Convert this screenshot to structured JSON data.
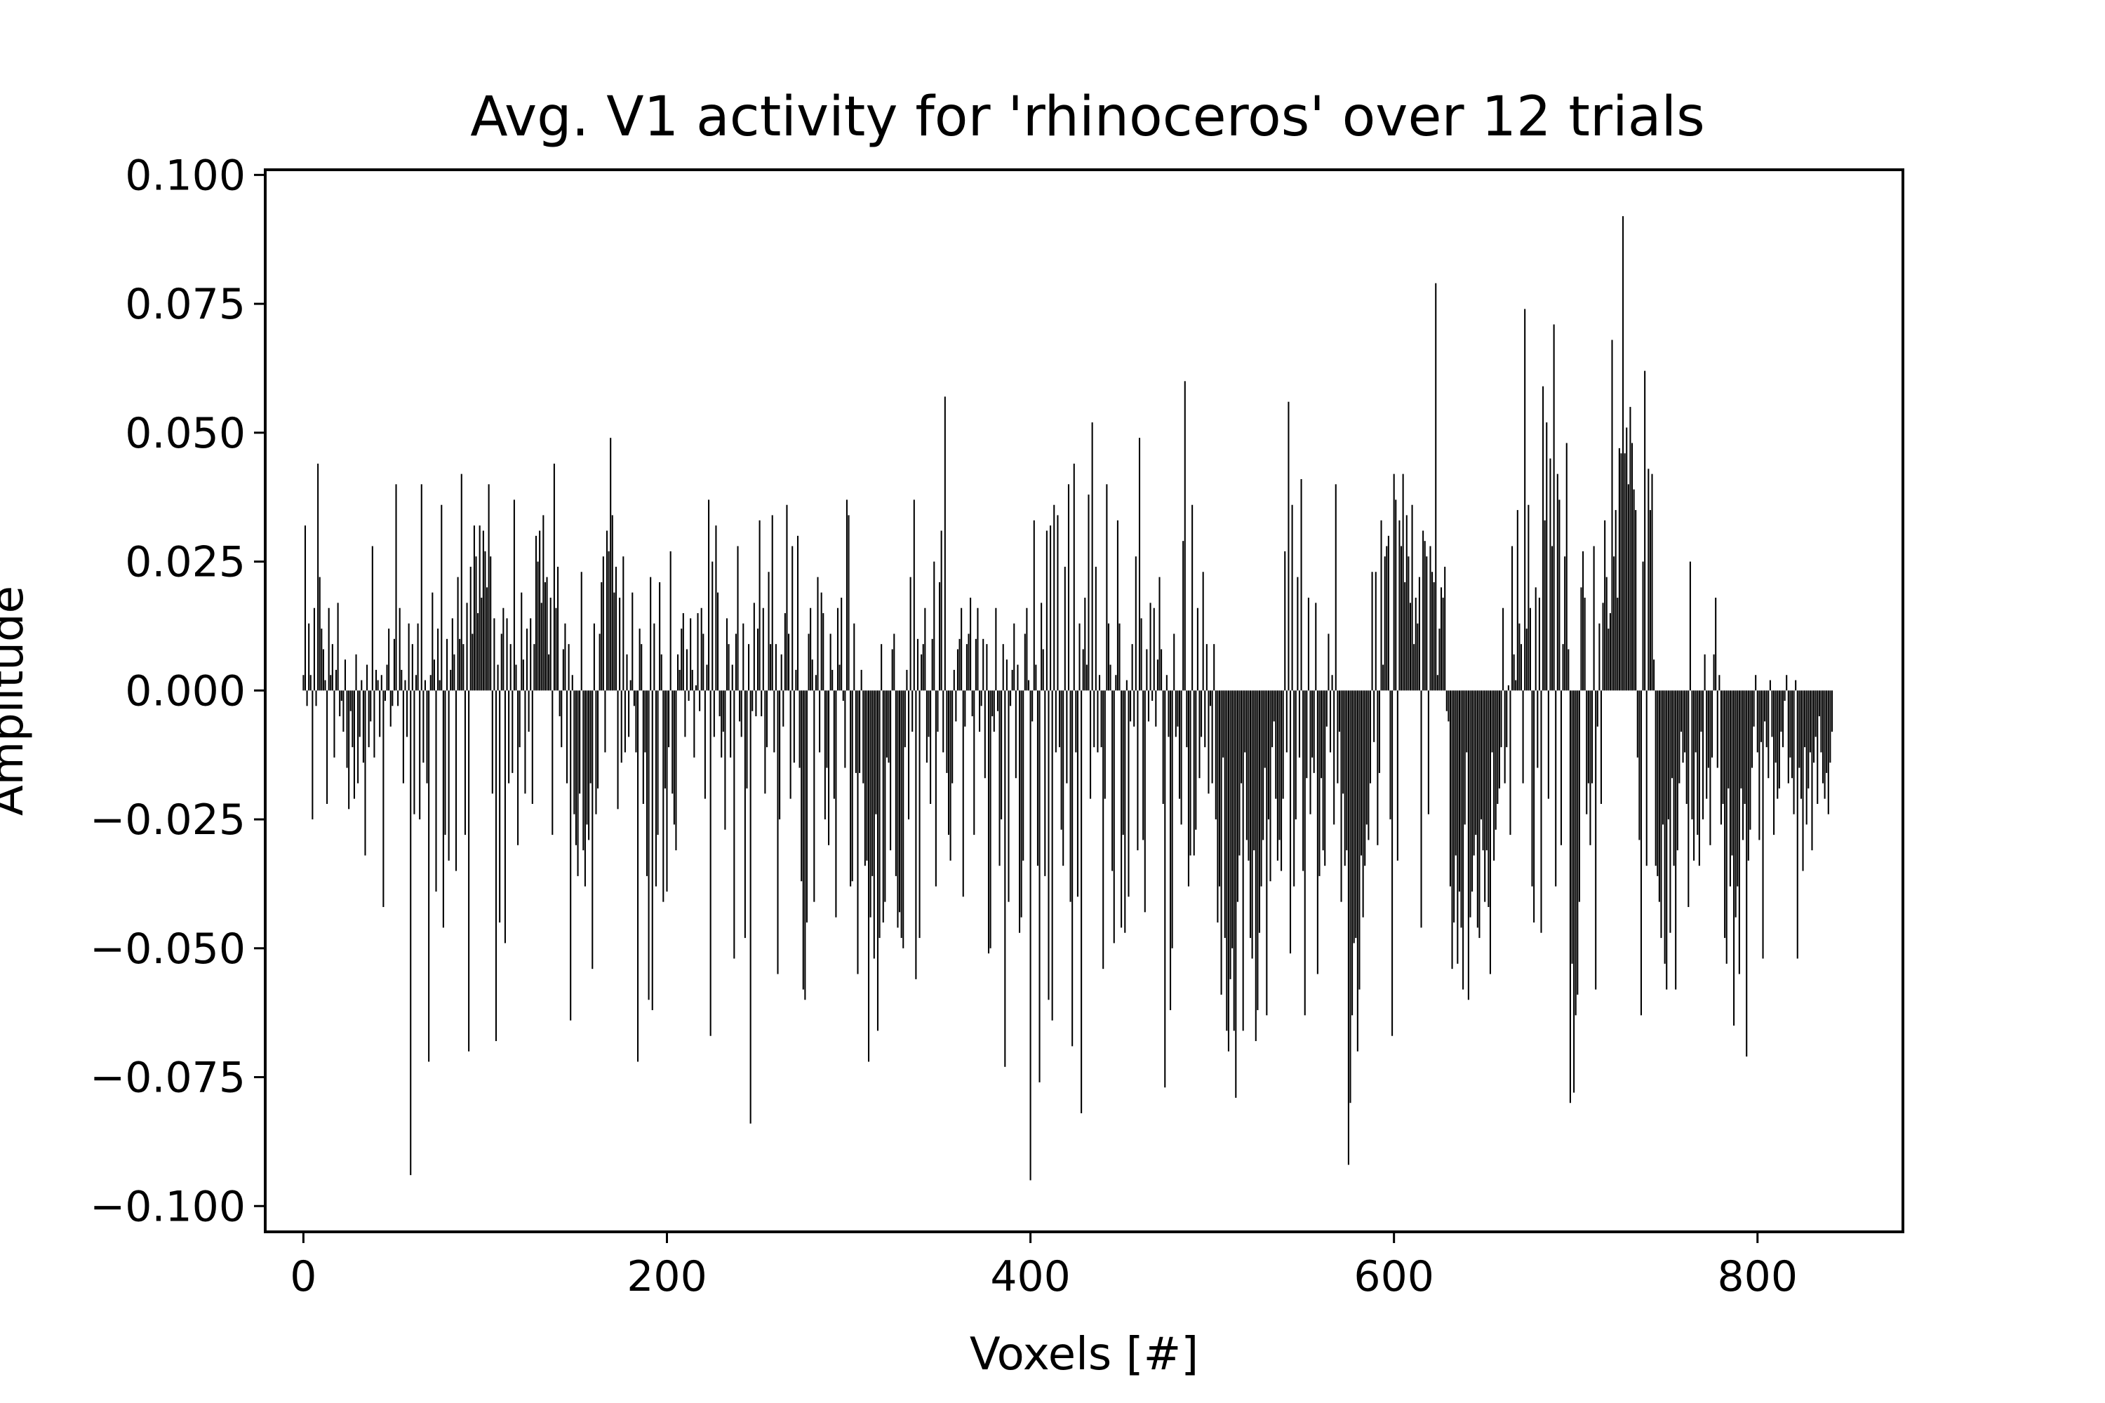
{
  "chart_data": {
    "type": "bar",
    "title": "Avg. V1 activity for 'rhinoceros' over 12 trials",
    "xlabel": "Voxels [#]",
    "ylabel": "Amplitude",
    "xlim": [
      -21,
      880
    ],
    "ylim": [
      -0.105,
      0.101
    ],
    "xticks": [
      0,
      200,
      400,
      600,
      800
    ],
    "xtick_labels": [
      "0",
      "200",
      "400",
      "600",
      "800"
    ],
    "yticks": [
      0.1,
      0.075,
      0.05,
      0.025,
      0.0,
      -0.025,
      -0.05,
      -0.075,
      -0.1
    ],
    "ytick_labels": [
      "0.100",
      "0.075",
      "0.050",
      "0.025",
      "0.000",
      "−0.025",
      "−0.050",
      "−0.075",
      "−0.100"
    ],
    "grid": false,
    "legend": "none",
    "n_voxels": 838,
    "x_start": 0,
    "bar_color": "#000000",
    "series": [
      {
        "values": [
          0.003,
          0.032,
          -0.003,
          0.013,
          0.003,
          -0.025,
          0.016,
          -0.003,
          0.044,
          0.022,
          0.012,
          0.008,
          0.002,
          -0.022,
          0.016,
          0.003,
          0.009,
          -0.013,
          0.004,
          0.017,
          -0.005,
          -0.002,
          -0.008,
          0.006,
          -0.015,
          -0.023,
          -0.004,
          -0.011,
          -0.021,
          0.007,
          -0.018,
          -0.009,
          0.002,
          -0.014,
          -0.032,
          0.005,
          -0.011,
          -0.006,
          0.028,
          -0.013,
          0.004,
          0.002,
          -0.009,
          0.003,
          -0.042,
          -0.002,
          0.005,
          0.012,
          -0.007,
          -0.003,
          0.01,
          0.04,
          -0.003,
          0.016,
          0.004,
          -0.018,
          0.002,
          -0.009,
          0.013,
          -0.094,
          0.009,
          -0.024,
          0.003,
          0.013,
          -0.025,
          0.04,
          -0.014,
          0.002,
          -0.018,
          -0.072,
          0.003,
          0.019,
          0.006,
          -0.039,
          0.012,
          0.002,
          0.036,
          -0.046,
          -0.028,
          0.01,
          -0.033,
          0.004,
          0.014,
          0.007,
          -0.035,
          0.022,
          0.01,
          0.042,
          0.009,
          -0.028,
          0.017,
          -0.07,
          0.024,
          0.011,
          0.032,
          0.026,
          0.015,
          0.032,
          0.018,
          0.031,
          0.027,
          0.02,
          0.04,
          0.026,
          -0.02,
          0.014,
          -0.068,
          0.005,
          -0.045,
          0.011,
          0.016,
          -0.049,
          0.014,
          -0.018,
          0.009,
          -0.016,
          0.037,
          0.005,
          -0.03,
          -0.011,
          0.019,
          0.006,
          -0.02,
          0.012,
          -0.008,
          0.014,
          -0.022,
          0.009,
          0.03,
          0.025,
          0.031,
          0.017,
          0.034,
          0.021,
          0.022,
          0.007,
          0.018,
          -0.028,
          0.044,
          0.016,
          0.024,
          -0.005,
          -0.011,
          0.008,
          0.013,
          -0.018,
          0.009,
          -0.064,
          0.003,
          -0.024,
          -0.03,
          -0.036,
          -0.02,
          0.023,
          -0.031,
          -0.038,
          -0.026,
          -0.029,
          -0.018,
          -0.054,
          0.013,
          -0.024,
          -0.019,
          0.011,
          0.021,
          0.026,
          -0.012,
          0.031,
          0.027,
          0.049,
          0.034,
          0.019,
          0.024,
          -0.023,
          0.018,
          -0.014,
          0.026,
          -0.012,
          0.007,
          -0.009,
          0.002,
          0.019,
          -0.003,
          -0.012,
          -0.072,
          0.012,
          0.009,
          -0.022,
          -0.012,
          -0.036,
          -0.06,
          0.022,
          -0.062,
          0.013,
          -0.038,
          -0.028,
          0.021,
          0.007,
          -0.041,
          -0.019,
          -0.039,
          -0.011,
          0.027,
          -0.02,
          -0.026,
          -0.031,
          0.007,
          0.004,
          0.012,
          0.015,
          -0.009,
          0.008,
          -0.002,
          0.014,
          0.004,
          -0.013,
          0.001,
          0.015,
          -0.004,
          0.016,
          0.011,
          -0.021,
          0.005,
          0.037,
          -0.067,
          0.025,
          -0.009,
          0.032,
          0.019,
          -0.005,
          -0.013,
          -0.008,
          -0.027,
          0.014,
          0.009,
          -0.013,
          0.005,
          -0.052,
          0.011,
          0.028,
          -0.006,
          -0.009,
          0.013,
          -0.048,
          -0.019,
          0.009,
          -0.084,
          -0.004,
          0.017,
          -0.005,
          0.012,
          0.033,
          -0.005,
          0.016,
          -0.02,
          -0.011,
          0.023,
          0.009,
          0.034,
          -0.012,
          0.009,
          -0.055,
          -0.025,
          0.007,
          -0.007,
          0.015,
          0.036,
          0.011,
          -0.021,
          0.028,
          -0.014,
          0.004,
          0.03,
          -0.015,
          -0.037,
          -0.058,
          -0.06,
          -0.045,
          0.011,
          0.016,
          0.006,
          -0.041,
          0.003,
          0.022,
          -0.012,
          0.019,
          0.015,
          -0.025,
          -0.015,
          -0.03,
          0.011,
          0.004,
          -0.021,
          -0.044,
          0.016,
          0.005,
          0.018,
          -0.002,
          -0.015,
          0.037,
          0.034,
          -0.038,
          -0.037,
          0.013,
          -0.016,
          -0.055,
          -0.016,
          0.004,
          -0.018,
          -0.034,
          -0.033,
          -0.072,
          -0.044,
          -0.036,
          -0.052,
          -0.024,
          -0.066,
          -0.048,
          0.009,
          -0.045,
          -0.041,
          -0.013,
          -0.014,
          -0.031,
          0.008,
          0.011,
          -0.036,
          -0.046,
          -0.043,
          -0.048,
          -0.05,
          -0.011,
          0.004,
          -0.025,
          0.022,
          -0.008,
          0.037,
          -0.056,
          0.01,
          -0.048,
          0.007,
          0.009,
          0.016,
          -0.014,
          -0.009,
          -0.022,
          0.01,
          0.025,
          -0.038,
          -0.008,
          0.021,
          0.031,
          -0.012,
          0.057,
          -0.016,
          -0.028,
          -0.033,
          -0.018,
          0.004,
          -0.006,
          0.008,
          0.01,
          0.016,
          -0.04,
          -0.007,
          0.009,
          0.011,
          0.018,
          -0.005,
          -0.028,
          0.01,
          0.016,
          -0.008,
          -0.003,
          0.01,
          -0.017,
          0.009,
          -0.051,
          -0.05,
          -0.005,
          -0.008,
          0.016,
          -0.004,
          -0.034,
          -0.025,
          0.009,
          -0.073,
          0.006,
          -0.041,
          -0.003,
          0.004,
          0.013,
          -0.017,
          0.005,
          -0.047,
          -0.044,
          -0.033,
          0.011,
          0.016,
          0.002,
          -0.095,
          -0.006,
          0.033,
          0.005,
          -0.034,
          -0.076,
          0.017,
          0.008,
          -0.036,
          0.031,
          -0.06,
          0.032,
          -0.064,
          0.036,
          -0.012,
          0.034,
          -0.011,
          -0.027,
          -0.034,
          0.024,
          -0.018,
          0.04,
          -0.041,
          -0.069,
          0.044,
          -0.012,
          -0.04,
          0.013,
          -0.082,
          0.008,
          0.018,
          0.005,
          0.038,
          -0.021,
          0.052,
          -0.011,
          0.024,
          -0.012,
          0.003,
          -0.011,
          -0.054,
          -0.021,
          0.04,
          0.013,
          0.005,
          -0.035,
          -0.049,
          0.003,
          0.033,
          0.013,
          -0.046,
          -0.028,
          -0.047,
          0.002,
          -0.04,
          -0.006,
          0.009,
          -0.007,
          0.026,
          -0.031,
          0.049,
          0.014,
          -0.029,
          -0.043,
          0.008,
          -0.006,
          0.017,
          -0.002,
          0.016,
          -0.007,
          0.006,
          0.022,
          0.008,
          -0.022,
          -0.077,
          0.003,
          -0.009,
          -0.062,
          -0.05,
          0.011,
          -0.009,
          -0.007,
          -0.021,
          -0.026,
          0.029,
          0.06,
          -0.011,
          -0.038,
          -0.032,
          0.036,
          -0.032,
          -0.027,
          0.016,
          -0.017,
          -0.009,
          0.023,
          -0.011,
          0.009,
          -0.02,
          -0.003,
          -0.018,
          0.009,
          -0.025,
          -0.045,
          -0.038,
          -0.059,
          -0.013,
          -0.048,
          -0.066,
          -0.07,
          -0.056,
          -0.05,
          -0.066,
          -0.079,
          -0.041,
          -0.032,
          -0.018,
          -0.066,
          -0.012,
          -0.029,
          -0.033,
          -0.048,
          -0.052,
          -0.031,
          -0.068,
          -0.062,
          -0.047,
          -0.038,
          -0.029,
          -0.015,
          -0.063,
          -0.025,
          -0.037,
          -0.011,
          -0.006,
          -0.021,
          -0.033,
          -0.029,
          -0.035,
          -0.021,
          0.027,
          -0.012,
          0.056,
          -0.051,
          0.036,
          -0.038,
          -0.025,
          0.022,
          -0.013,
          0.041,
          -0.035,
          -0.063,
          -0.017,
          0.018,
          -0.024,
          -0.013,
          -0.016,
          0.017,
          -0.055,
          -0.036,
          -0.017,
          -0.031,
          -0.034,
          -0.007,
          0.011,
          -0.012,
          0.003,
          -0.026,
          0.04,
          -0.018,
          -0.008,
          -0.041,
          -0.02,
          -0.034,
          -0.031,
          -0.092,
          -0.08,
          -0.063,
          -0.049,
          -0.048,
          -0.07,
          -0.058,
          -0.032,
          -0.044,
          -0.034,
          -0.026,
          -0.029,
          -0.018,
          0.023,
          -0.01,
          0.023,
          -0.03,
          -0.016,
          0.033,
          0.005,
          0.026,
          0.028,
          0.03,
          -0.025,
          -0.067,
          0.042,
          0.037,
          -0.033,
          0.033,
          0.028,
          0.042,
          0.021,
          0.034,
          0.026,
          0.017,
          0.036,
          0.009,
          0.018,
          0.013,
          0.022,
          -0.046,
          0.031,
          0.029,
          0.026,
          -0.024,
          0.028,
          0.023,
          0.021,
          0.079,
          0.003,
          0.012,
          0.02,
          0.018,
          0.024,
          -0.004,
          -0.006,
          -0.038,
          -0.054,
          -0.045,
          -0.032,
          -0.053,
          -0.039,
          -0.046,
          -0.058,
          -0.026,
          -0.012,
          -0.06,
          -0.044,
          -0.039,
          -0.032,
          -0.028,
          -0.046,
          -0.048,
          -0.025,
          -0.031,
          -0.041,
          -0.031,
          -0.042,
          -0.055,
          -0.012,
          -0.033,
          -0.027,
          -0.022,
          -0.019,
          -0.011,
          0.016,
          -0.018,
          -0.011,
          0.001,
          -0.028,
          0.028,
          0.007,
          0.002,
          0.035,
          0.013,
          0.009,
          -0.018,
          0.074,
          0.012,
          0.036,
          0.016,
          -0.038,
          -0.045,
          0.02,
          -0.015,
          0.018,
          -0.047,
          0.059,
          0.033,
          0.052,
          -0.021,
          0.045,
          0.028,
          0.071,
          -0.038,
          0.042,
          0.037,
          -0.03,
          0.009,
          0.026,
          0.048,
          0.008,
          -0.08,
          -0.053,
          -0.078,
          -0.063,
          -0.059,
          -0.041,
          0.02,
          0.027,
          0.018,
          -0.024,
          -0.018,
          -0.03,
          -0.018,
          0.028,
          -0.058,
          -0.007,
          0.013,
          -0.022,
          0.017,
          0.033,
          0.022,
          0.012,
          0.015,
          0.068,
          0.026,
          0.035,
          0.018,
          0.047,
          0.046,
          0.092,
          0.046,
          0.051,
          0.04,
          0.055,
          0.048,
          0.039,
          0.035,
          -0.013,
          -0.029,
          -0.063,
          0.025,
          0.062,
          -0.034,
          0.043,
          0.035,
          0.042,
          0.006,
          -0.034,
          -0.036,
          -0.041,
          -0.048,
          -0.026,
          -0.053,
          -0.058,
          -0.025,
          -0.047,
          -0.017,
          -0.034,
          -0.058,
          -0.031,
          -0.018,
          -0.008,
          -0.014,
          -0.012,
          -0.022,
          -0.042,
          0.025,
          -0.025,
          -0.033,
          -0.012,
          -0.028,
          -0.034,
          -0.008,
          -0.025,
          0.007,
          -0.021,
          -0.015,
          -0.03,
          -0.013,
          0.007,
          0.018,
          -0.015,
          0.003,
          -0.026,
          -0.022,
          -0.048,
          -0.053,
          -0.019,
          -0.038,
          -0.032,
          -0.065,
          -0.044,
          -0.038,
          -0.055,
          -0.019,
          -0.029,
          -0.022,
          -0.071,
          -0.033,
          -0.027,
          -0.015,
          -0.007,
          0.003,
          -0.012,
          -0.029,
          -0.01,
          -0.052,
          -0.006,
          -0.011,
          -0.017,
          0.002,
          -0.009,
          -0.028,
          -0.014,
          -0.021,
          -0.019,
          -0.008,
          -0.011,
          -0.002,
          0.003,
          -0.018,
          -0.013,
          -0.017,
          -0.024,
          0.002,
          -0.052,
          -0.015,
          -0.021,
          -0.035,
          -0.011,
          -0.026,
          -0.019,
          -0.012,
          -0.031,
          -0.014,
          -0.009,
          -0.022,
          -0.005,
          -0.012,
          -0.018,
          -0.021,
          -0.016,
          -0.024,
          -0.014,
          -0.008
        ]
      }
    ]
  }
}
